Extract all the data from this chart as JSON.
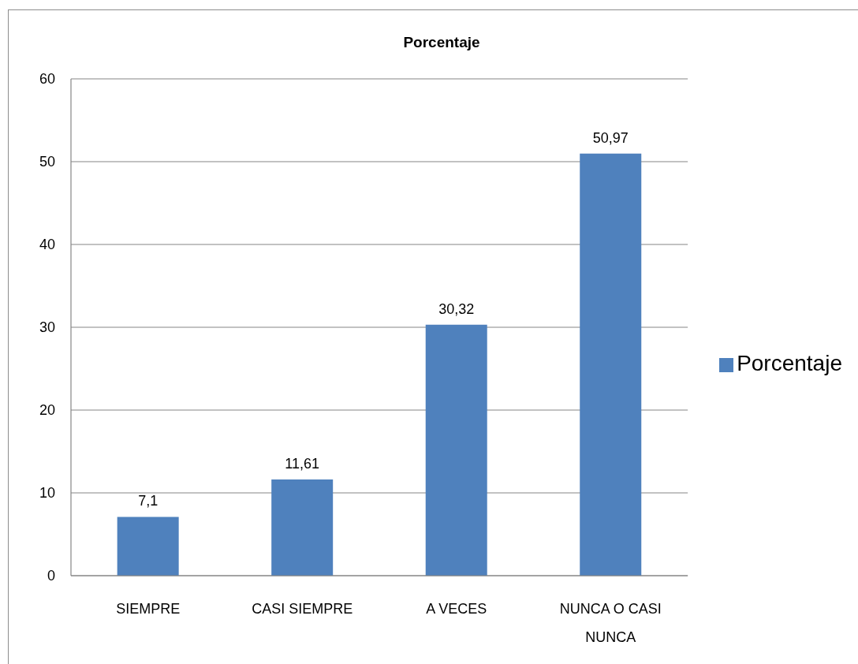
{
  "chart_data": {
    "type": "bar",
    "title": "Porcentaje",
    "categories": [
      "SIEMPRE",
      "CASI SIEMPRE",
      "A VECES",
      "NUNCA O CASI NUNCA"
    ],
    "series": [
      {
        "name": "Porcentaje",
        "color": "#4f81bd",
        "values": [
          7.1,
          11.61,
          30.32,
          50.97
        ],
        "value_labels": [
          "7,1",
          "11,61",
          "30,32",
          "50,97"
        ]
      }
    ],
    "ylim": [
      0,
      60
    ],
    "yticks": [
      0,
      10,
      20,
      30,
      40,
      50,
      60
    ],
    "grid": "y",
    "legend": "right"
  }
}
